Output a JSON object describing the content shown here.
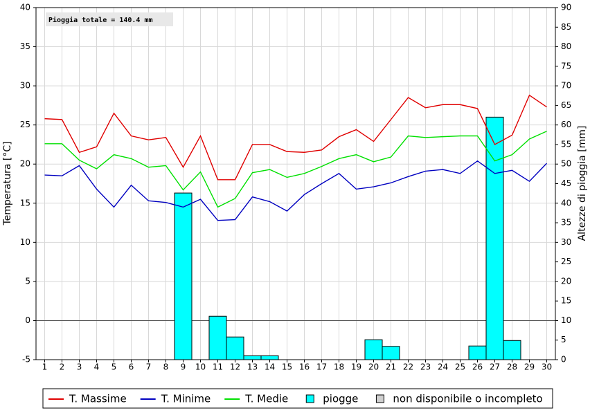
{
  "chart_data": {
    "type": "line",
    "annotation": "Pioggia totale = 140.4 mm",
    "ylabel": "Temperatura [°C]",
    "y2label": "Altezze di pioggia [mm]",
    "categories": [
      "1",
      "2",
      "3",
      "4",
      "5",
      "6",
      "7",
      "8",
      "9",
      "10",
      "11",
      "12",
      "13",
      "14",
      "15",
      "16",
      "17",
      "18",
      "19",
      "20",
      "21",
      "22",
      "23",
      "24",
      "25",
      "26",
      "27",
      "28",
      "29",
      "30"
    ],
    "series": [
      {
        "name": "T. Massime",
        "color": "#e00000",
        "type": "line",
        "values": [
          25.8,
          25.7,
          21.5,
          22.2,
          26.5,
          23.6,
          23.1,
          23.4,
          19.6,
          23.6,
          18.0,
          18.0,
          22.5,
          22.5,
          21.6,
          21.5,
          21.8,
          23.5,
          24.4,
          22.9,
          25.7,
          28.5,
          27.2,
          27.6,
          27.6,
          27.1,
          22.5,
          23.7,
          28.8,
          27.3
        ]
      },
      {
        "name": "T. Minime",
        "color": "#0000c0",
        "type": "line",
        "values": [
          18.6,
          18.5,
          19.8,
          16.8,
          14.5,
          17.3,
          15.3,
          15.1,
          14.5,
          15.5,
          12.8,
          12.9,
          15.8,
          15.2,
          14.0,
          16.1,
          17.5,
          18.8,
          16.8,
          17.1,
          17.6,
          18.4,
          19.1,
          19.3,
          18.8,
          20.4,
          18.8,
          19.2,
          17.8,
          20.1
        ]
      },
      {
        "name": "T. Medie",
        "color": "#00e000",
        "type": "line",
        "values": [
          22.6,
          22.6,
          20.5,
          19.4,
          21.2,
          20.7,
          19.6,
          19.8,
          16.7,
          19.0,
          14.5,
          15.6,
          18.9,
          19.3,
          18.3,
          18.8,
          19.7,
          20.7,
          21.2,
          20.3,
          20.9,
          23.6,
          23.4,
          23.5,
          23.6,
          23.6,
          20.4,
          21.2,
          23.2,
          24.2
        ]
      },
      {
        "name": "piogge",
        "color": "#00ffff",
        "type": "bar",
        "axis": "y2",
        "values": [
          0,
          0,
          0,
          0,
          0,
          0,
          0,
          0,
          42.6,
          0,
          11.1,
          5.8,
          1.0,
          1.0,
          0,
          0,
          0,
          0,
          0,
          5.1,
          3.4,
          0,
          0,
          0,
          0,
          3.5,
          62.0,
          4.9,
          0,
          0
        ]
      }
    ],
    "legend_extra": {
      "name": "non disponibile o incompleto",
      "color": "#d0d0d0"
    },
    "ylim": [
      -5,
      40
    ],
    "yticks": [
      -5,
      0,
      5,
      10,
      15,
      20,
      25,
      30,
      35,
      40
    ],
    "y2lim": [
      0,
      90
    ],
    "y2ticks": [
      0,
      5,
      10,
      15,
      20,
      25,
      30,
      35,
      40,
      45,
      50,
      55,
      60,
      65,
      70,
      75,
      80,
      85,
      90
    ],
    "grid": true,
    "legend": "bottom"
  }
}
